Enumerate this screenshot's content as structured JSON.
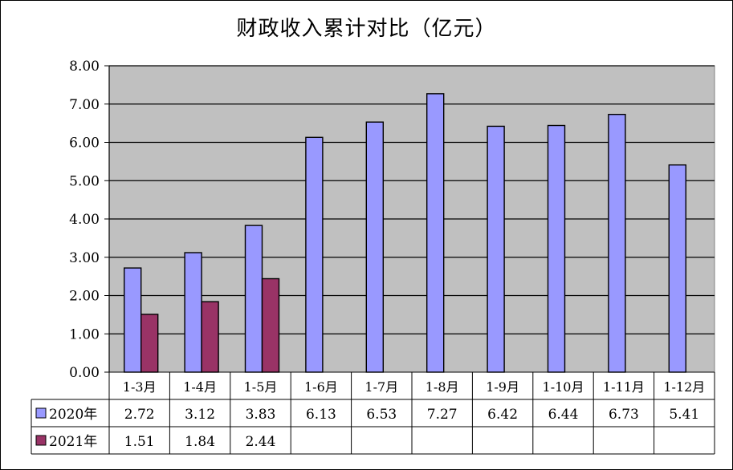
{
  "chart_data": {
    "type": "bar",
    "title": "财政收入累计对比（亿元）",
    "categories": [
      "1-3月",
      "1-4月",
      "1-5月",
      "1-6月",
      "1-7月",
      "1-8月",
      "1-9月",
      "1-10月",
      "1-11月",
      "1-12月"
    ],
    "series": [
      {
        "name": "2020年",
        "values": [
          2.72,
          3.12,
          3.83,
          6.13,
          6.53,
          7.27,
          6.42,
          6.44,
          6.73,
          5.41
        ],
        "color": "#9999ff"
      },
      {
        "name": "2021年",
        "values": [
          1.51,
          1.84,
          2.44,
          null,
          null,
          null,
          null,
          null,
          null,
          null
        ],
        "color": "#993366"
      }
    ],
    "y_ticks": [
      "0.00",
      "1.00",
      "2.00",
      "3.00",
      "4.00",
      "5.00",
      "6.00",
      "7.00",
      "8.00"
    ],
    "value_labels": {
      "2020年": [
        "2.72",
        "3.12",
        "3.83",
        "6.13",
        "6.53",
        "7.27",
        "6.42",
        "6.44",
        "6.73",
        "5.41"
      ],
      "2021年": [
        "1.51",
        "1.84",
        "2.44",
        "",
        "",
        "",
        "",
        "",
        "",
        ""
      ]
    },
    "ylim": [
      0,
      8
    ],
    "grid": true,
    "plot_background": "#c0c0c0",
    "legend": "data-table-left"
  }
}
